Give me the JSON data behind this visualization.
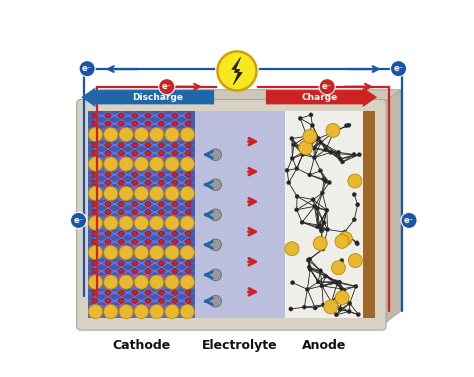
{
  "labels": {
    "cathode": "Cathode",
    "electrolyte": "Electrolyte",
    "anode": "Anode",
    "discharge": "Discharge",
    "charge": "Charge"
  },
  "colors": {
    "background": "#ffffff",
    "battery_case": "#d8d2c5",
    "battery_case_side": "#c0b8a8",
    "battery_case_top": "#cdc7ba",
    "cathode_bg": "#5a6bbf",
    "cathode_layer_dark": "#4455aa",
    "electrolyte_bg": "#b8bce0",
    "anode_dark": "#1a1a2a",
    "anode_white": "#e8e8e8",
    "anode_collector": "#a06828",
    "gold_sphere": "#e8b830",
    "gold_edge": "#b88800",
    "red_sphere": "#cc2222",
    "gray_sphere": "#999999",
    "gray_edge": "#666666",
    "dark_node": "#222222",
    "blue_arrow": "#2266aa",
    "red_arrow": "#cc2222",
    "discharge_arrow": "#2266aa",
    "charge_arrow": "#cc2222",
    "electron_blue": "#1a55aa",
    "electron_red": "#cc2222",
    "lightning_yellow": "#f8e820",
    "lightning_outline": "#d4a000",
    "lightning_bolt": "#222200",
    "wire_blue": "#1a55aa",
    "wire_red": "#cc2222",
    "label_color": "#111111",
    "white_text": "#ffffff",
    "pink_node": "#cc44aa"
  },
  "figsize": [
    4.74,
    3.77
  ],
  "dpi": 100
}
